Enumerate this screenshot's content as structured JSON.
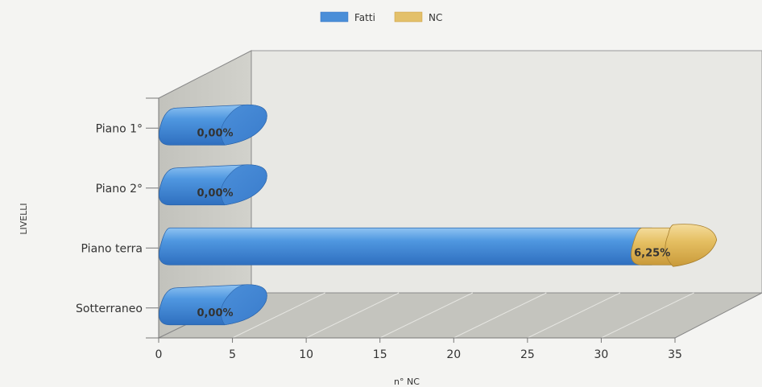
{
  "chart_data": {
    "type": "bar",
    "orientation": "horizontal",
    "stacked": true,
    "categories": [
      "Sotterraneo",
      "Piano terra",
      "Piano 2°",
      "Piano 1°"
    ],
    "series": [
      {
        "name": "Fatti",
        "values": [
          0,
          32,
          0,
          0
        ],
        "color": "#4a8ed8"
      },
      {
        "name": "NC",
        "values": [
          0,
          2,
          0,
          0
        ],
        "color": "#e3c06a"
      }
    ],
    "data_labels": [
      "0,00%",
      "6,25%",
      "0,00%",
      "0,00%"
    ],
    "xlabel": "n° NC",
    "ylabel": "LIVELLI",
    "xlim": [
      0,
      35
    ],
    "xticks": [
      "0",
      "5",
      "10",
      "15",
      "20",
      "25",
      "30",
      "35"
    ],
    "legend_position": "top-center",
    "grid": true
  }
}
